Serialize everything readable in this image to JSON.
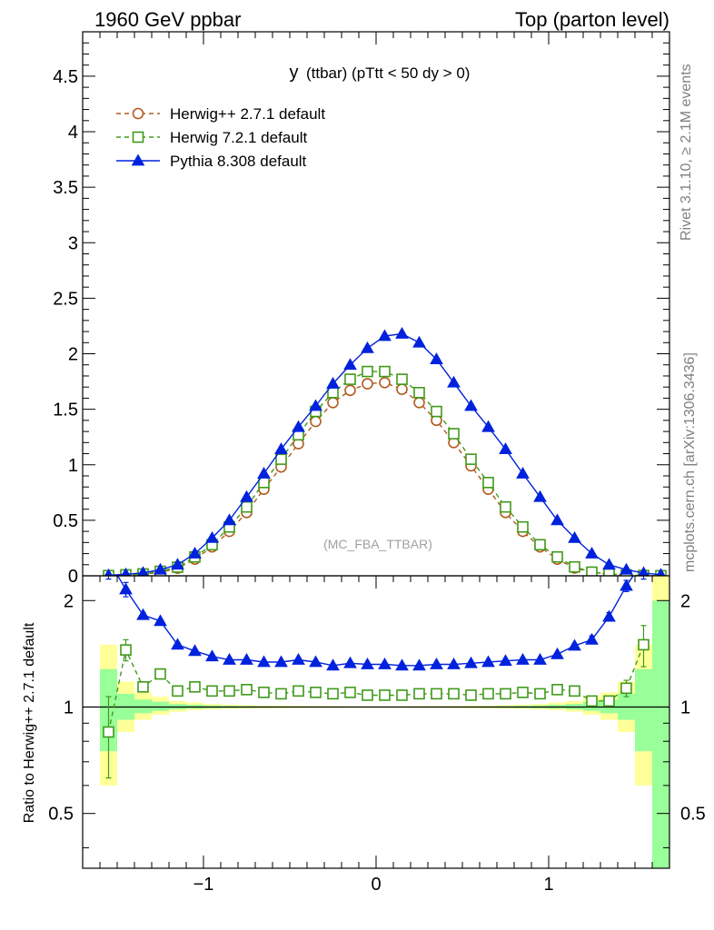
{
  "header": {
    "left": "1960 GeV ppbar",
    "right": "Top (parton level)"
  },
  "side_labels": {
    "rivet": "Rivet 3.1.10, ≥ 2.1M events",
    "mcplots": "mcplots.cern.ch [arXiv:1306.3436]"
  },
  "colors": {
    "herwigpp": "#b35a1f",
    "herwig7": "#3f9a1a",
    "pythia": "#0022dd",
    "band_yellow": "#ffff99",
    "band_green": "#99ff99"
  },
  "chart_data": [
    {
      "type": "line",
      "title": "y (ttbar) (pTtt < 50 dy > 0)",
      "title_main": "y",
      "title_rest": "(ttbar) (pTtt < 50 dy > 0)",
      "watermark": "(MC_FBA_TTBAR)",
      "xlim": [
        -1.7,
        1.7
      ],
      "ylim": [
        0,
        4.9
      ],
      "yticks": [
        "0",
        "0.5",
        "1",
        "1.5",
        "2",
        "2.5",
        "3",
        "3.5",
        "4",
        "4.5"
      ],
      "legend_position": "top-left",
      "x": [
        -1.55,
        -1.45,
        -1.35,
        -1.25,
        -1.15,
        -1.05,
        -0.95,
        -0.85,
        -0.75,
        -0.65,
        -0.55,
        -0.45,
        -0.35,
        -0.25,
        -0.15,
        -0.05,
        0.05,
        0.15,
        0.25,
        0.35,
        0.45,
        0.55,
        0.65,
        0.75,
        0.85,
        0.95,
        1.05,
        1.15,
        1.25,
        1.35,
        1.45,
        1.55,
        1.65
      ],
      "series": [
        {
          "name": "Herwig++ 2.7.1 default",
          "marker": "open-circle",
          "values": [
            0.002,
            0.006,
            0.015,
            0.032,
            0.068,
            0.15,
            0.26,
            0.4,
            0.57,
            0.78,
            0.98,
            1.19,
            1.39,
            1.56,
            1.67,
            1.73,
            1.74,
            1.68,
            1.56,
            1.4,
            1.2,
            0.99,
            0.78,
            0.57,
            0.4,
            0.26,
            0.15,
            0.07,
            0.032,
            0.015,
            0.006,
            0.002,
            0.001
          ]
        },
        {
          "name": "Herwig 7.2.1 default",
          "marker": "open-square",
          "values": [
            0.002,
            0.009,
            0.017,
            0.041,
            0.078,
            0.17,
            0.28,
            0.44,
            0.62,
            0.84,
            1.05,
            1.27,
            1.48,
            1.65,
            1.77,
            1.84,
            1.84,
            1.77,
            1.65,
            1.48,
            1.28,
            1.05,
            0.84,
            0.62,
            0.44,
            0.28,
            0.17,
            0.08,
            0.033,
            0.016,
            0.007,
            0.003,
            0.001
          ]
        },
        {
          "name": "Pythia 8.308 default",
          "marker": "filled-triangle",
          "values": [
            0.005,
            0.013,
            0.027,
            0.055,
            0.1,
            0.2,
            0.34,
            0.5,
            0.71,
            0.92,
            1.14,
            1.34,
            1.53,
            1.73,
            1.9,
            2.05,
            2.16,
            2.18,
            2.1,
            1.95,
            1.74,
            1.53,
            1.34,
            1.14,
            0.92,
            0.71,
            0.5,
            0.34,
            0.2,
            0.1,
            0.055,
            0.025,
            0.01
          ]
        }
      ]
    },
    {
      "type": "line",
      "ylabel": "Ratio to Herwig++ 2.7.1 default",
      "xlim": [
        -1.7,
        1.7
      ],
      "ylim": [
        0.35,
        2.35
      ],
      "xticks": [
        "−1",
        "0",
        "1"
      ],
      "yticks": [
        "0.5",
        "1",
        "2"
      ],
      "x": [
        -1.55,
        -1.45,
        -1.35,
        -1.25,
        -1.15,
        -1.05,
        -0.95,
        -0.85,
        -0.75,
        -0.65,
        -0.55,
        -0.45,
        -0.35,
        -0.25,
        -0.15,
        -0.05,
        0.05,
        0.15,
        0.25,
        0.35,
        0.45,
        0.55,
        0.65,
        0.75,
        0.85,
        0.95,
        1.05,
        1.15,
        1.25,
        1.35,
        1.45,
        1.55
      ],
      "band_edges": [
        -1.6,
        -1.5,
        -1.4,
        -1.3,
        -1.2,
        -1.1,
        -1.0,
        -0.9,
        -0.8,
        -0.7,
        -0.6,
        -0.5,
        -0.4,
        -0.3,
        -0.2,
        -0.1,
        0.0,
        0.1,
        0.2,
        0.3,
        0.4,
        0.5,
        0.6,
        0.7,
        0.8,
        0.9,
        1.0,
        1.1,
        1.2,
        1.3,
        1.4,
        1.5,
        1.6,
        1.7
      ],
      "band_yellow": [
        [
          0.6,
          1.5
        ],
        [
          0.85,
          1.18
        ],
        [
          0.92,
          1.1
        ],
        [
          0.95,
          1.07
        ],
        [
          0.97,
          1.04
        ],
        [
          0.98,
          1.03
        ],
        [
          0.985,
          1.02
        ],
        [
          0.988,
          1.015
        ],
        [
          0.99,
          1.012
        ],
        [
          0.992,
          1.01
        ],
        [
          0.993,
          1.009
        ],
        [
          0.994,
          1.008
        ],
        [
          0.995,
          1.007
        ],
        [
          0.995,
          1.006
        ],
        [
          0.996,
          1.006
        ],
        [
          0.996,
          1.005
        ],
        [
          0.996,
          1.005
        ],
        [
          0.996,
          1.006
        ],
        [
          0.995,
          1.006
        ],
        [
          0.995,
          1.007
        ],
        [
          0.994,
          1.008
        ],
        [
          0.993,
          1.009
        ],
        [
          0.992,
          1.01
        ],
        [
          0.99,
          1.012
        ],
        [
          0.988,
          1.015
        ],
        [
          0.985,
          1.02
        ],
        [
          0.98,
          1.03
        ],
        [
          0.97,
          1.04
        ],
        [
          0.95,
          1.07
        ],
        [
          0.92,
          1.1
        ],
        [
          0.85,
          1.18
        ],
        [
          0.6,
          1.5
        ],
        [
          0.2,
          2.5
        ]
      ],
      "band_green": [
        [
          0.75,
          1.28
        ],
        [
          0.92,
          1.09
        ],
        [
          0.96,
          1.05
        ],
        [
          0.975,
          1.035
        ],
        [
          0.985,
          1.02
        ],
        [
          0.99,
          1.015
        ],
        [
          0.992,
          1.01
        ],
        [
          0.994,
          1.008
        ],
        [
          0.995,
          1.006
        ],
        [
          0.996,
          1.005
        ],
        [
          0.997,
          1.004
        ],
        [
          0.997,
          1.004
        ],
        [
          0.998,
          1.003
        ],
        [
          0.998,
          1.003
        ],
        [
          0.998,
          1.003
        ],
        [
          0.998,
          1.002
        ],
        [
          0.998,
          1.002
        ],
        [
          0.998,
          1.003
        ],
        [
          0.998,
          1.003
        ],
        [
          0.998,
          1.003
        ],
        [
          0.997,
          1.004
        ],
        [
          0.997,
          1.004
        ],
        [
          0.996,
          1.005
        ],
        [
          0.995,
          1.006
        ],
        [
          0.994,
          1.008
        ],
        [
          0.992,
          1.01
        ],
        [
          0.99,
          1.015
        ],
        [
          0.985,
          1.02
        ],
        [
          0.975,
          1.035
        ],
        [
          0.96,
          1.05
        ],
        [
          0.92,
          1.09
        ],
        [
          0.75,
          1.28
        ],
        [
          0.3,
          2.0
        ]
      ],
      "series": [
        {
          "name": "Herwig 7.2.1 default",
          "values": [
            0.85,
            1.45,
            1.14,
            1.24,
            1.11,
            1.14,
            1.11,
            1.11,
            1.12,
            1.1,
            1.09,
            1.11,
            1.1,
            1.09,
            1.1,
            1.08,
            1.08,
            1.08,
            1.09,
            1.09,
            1.09,
            1.08,
            1.09,
            1.09,
            1.1,
            1.09,
            1.12,
            1.11,
            1.04,
            1.04,
            1.13,
            1.5
          ],
          "errors": [
            0.22,
            0.1,
            0.03,
            0.03,
            0.02,
            0.02,
            0.01,
            0.01,
            0.01,
            0.01,
            0.01,
            0.01,
            0.01,
            0.01,
            0.01,
            0.01,
            0.01,
            0.01,
            0.01,
            0.01,
            0.01,
            0.01,
            0.01,
            0.01,
            0.01,
            0.01,
            0.02,
            0.02,
            0.03,
            0.03,
            0.06,
            0.2
          ]
        },
        {
          "name": "Pythia 8.308 default",
          "values": [
            2.6,
            2.15,
            1.82,
            1.75,
            1.5,
            1.44,
            1.39,
            1.36,
            1.36,
            1.34,
            1.34,
            1.36,
            1.34,
            1.31,
            1.33,
            1.32,
            1.32,
            1.31,
            1.31,
            1.32,
            1.32,
            1.33,
            1.34,
            1.35,
            1.36,
            1.36,
            1.41,
            1.49,
            1.55,
            1.8,
            2.2,
            2.6
          ],
          "errors": [
            0.3,
            0.1,
            0.03,
            0.02,
            0.01,
            0.01,
            0.01,
            0.01,
            0.01,
            0.01,
            0.01,
            0.01,
            0.01,
            0.01,
            0.01,
            0.01,
            0.01,
            0.01,
            0.01,
            0.01,
            0.01,
            0.01,
            0.01,
            0.01,
            0.01,
            0.01,
            0.01,
            0.02,
            0.04,
            0.05,
            0.08,
            0.3
          ]
        }
      ]
    }
  ]
}
